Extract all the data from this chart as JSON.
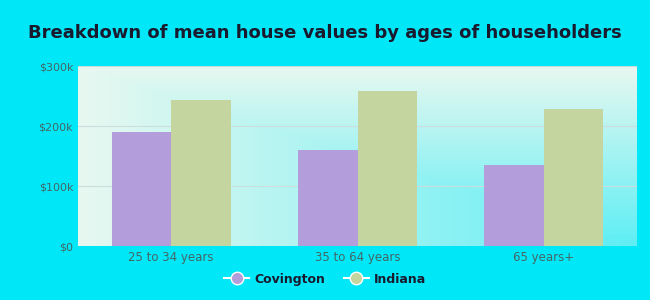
{
  "title": "Breakdown of mean house values by ages of householders",
  "categories": [
    "25 to 34 years",
    "35 to 64 years",
    "65 years+"
  ],
  "covington_values": [
    190000,
    160000,
    135000
  ],
  "indiana_values": [
    243000,
    258000,
    228000
  ],
  "covington_color": "#b39ddb",
  "indiana_color": "#c5d5a0",
  "ylim": [
    0,
    300000
  ],
  "yticks": [
    0,
    100000,
    200000,
    300000
  ],
  "ytick_labels": [
    "$0",
    "$100k",
    "$200k",
    "$300k"
  ],
  "background_outer": "#00e8f8",
  "bar_width": 0.32,
  "title_fontsize": 13,
  "legend_labels": [
    "Covington",
    "Indiana"
  ],
  "grid_color": "#ddeeee",
  "title_color": "#1a1a2e"
}
